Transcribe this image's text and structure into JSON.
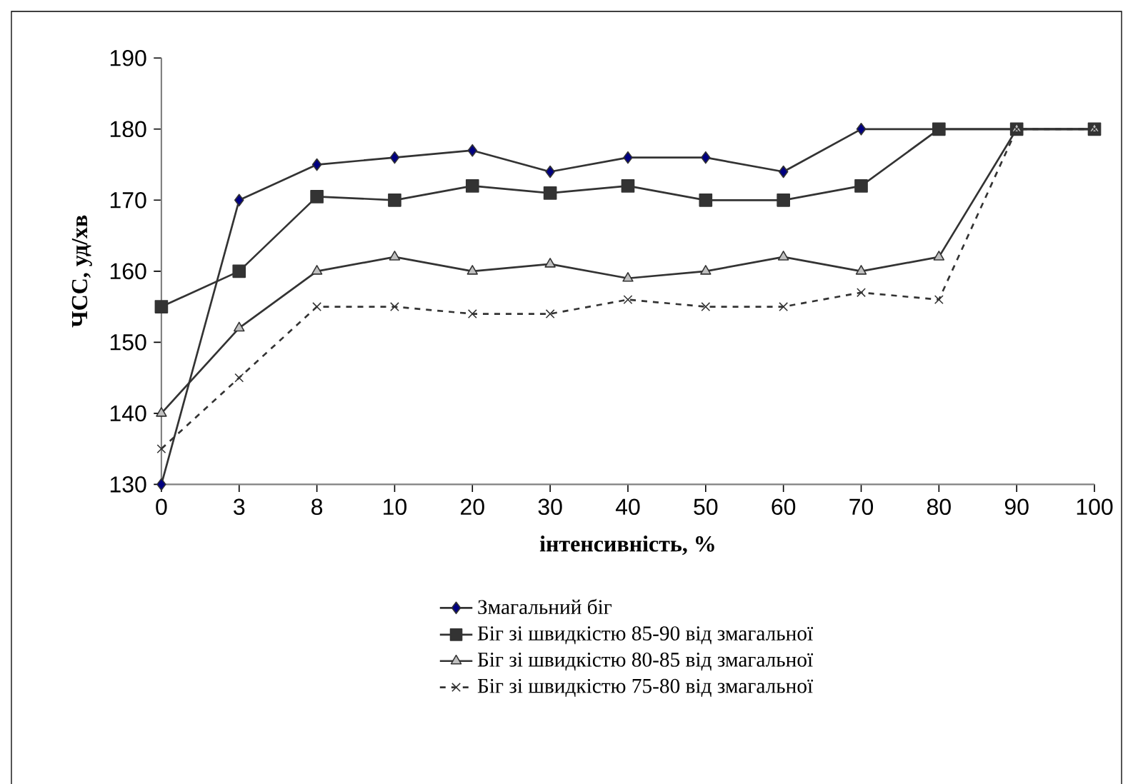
{
  "chart_data": {
    "type": "line",
    "xlabel": "інтенсивність, %",
    "ylabel": "ЧСС, уд/хв",
    "categories": [
      "0",
      "3",
      "8",
      "10",
      "20",
      "30",
      "40",
      "50",
      "60",
      "70",
      "80",
      "90",
      "100"
    ],
    "ylim": [
      130,
      190
    ],
    "yticks": [
      130,
      140,
      150,
      160,
      170,
      180,
      190
    ],
    "grid": false,
    "legend": "bottom",
    "series": [
      {
        "name": "Змагальний біг",
        "color": "#000080",
        "marker": "diamond",
        "line_style": "solid",
        "values": [
          130,
          170,
          175,
          176,
          177,
          174,
          176,
          176,
          174,
          180,
          180,
          180,
          180
        ]
      },
      {
        "name": "Біг зі швидкістю 85-90 від змагальної",
        "color": "#333333",
        "marker": "square",
        "line_style": "solid",
        "values": [
          155,
          160,
          170.5,
          170,
          172,
          171,
          172,
          170,
          170,
          172,
          180,
          180,
          180
        ]
      },
      {
        "name": "Біг зі швидкістю 80-85 від змагальної",
        "color": "#c0c0c0",
        "marker": "triangle",
        "line_style": "solid",
        "values": [
          140,
          152,
          160,
          162,
          160,
          161,
          159,
          160,
          162,
          160,
          162,
          180,
          180
        ]
      },
      {
        "name": "Біг зі швидкістю 75-80 від змагальної",
        "color": "#333333",
        "marker": "cross",
        "line_style": "dashed",
        "values": [
          135,
          145,
          155,
          155,
          154,
          154,
          156,
          155,
          155,
          157,
          156,
          180,
          180
        ]
      }
    ]
  }
}
